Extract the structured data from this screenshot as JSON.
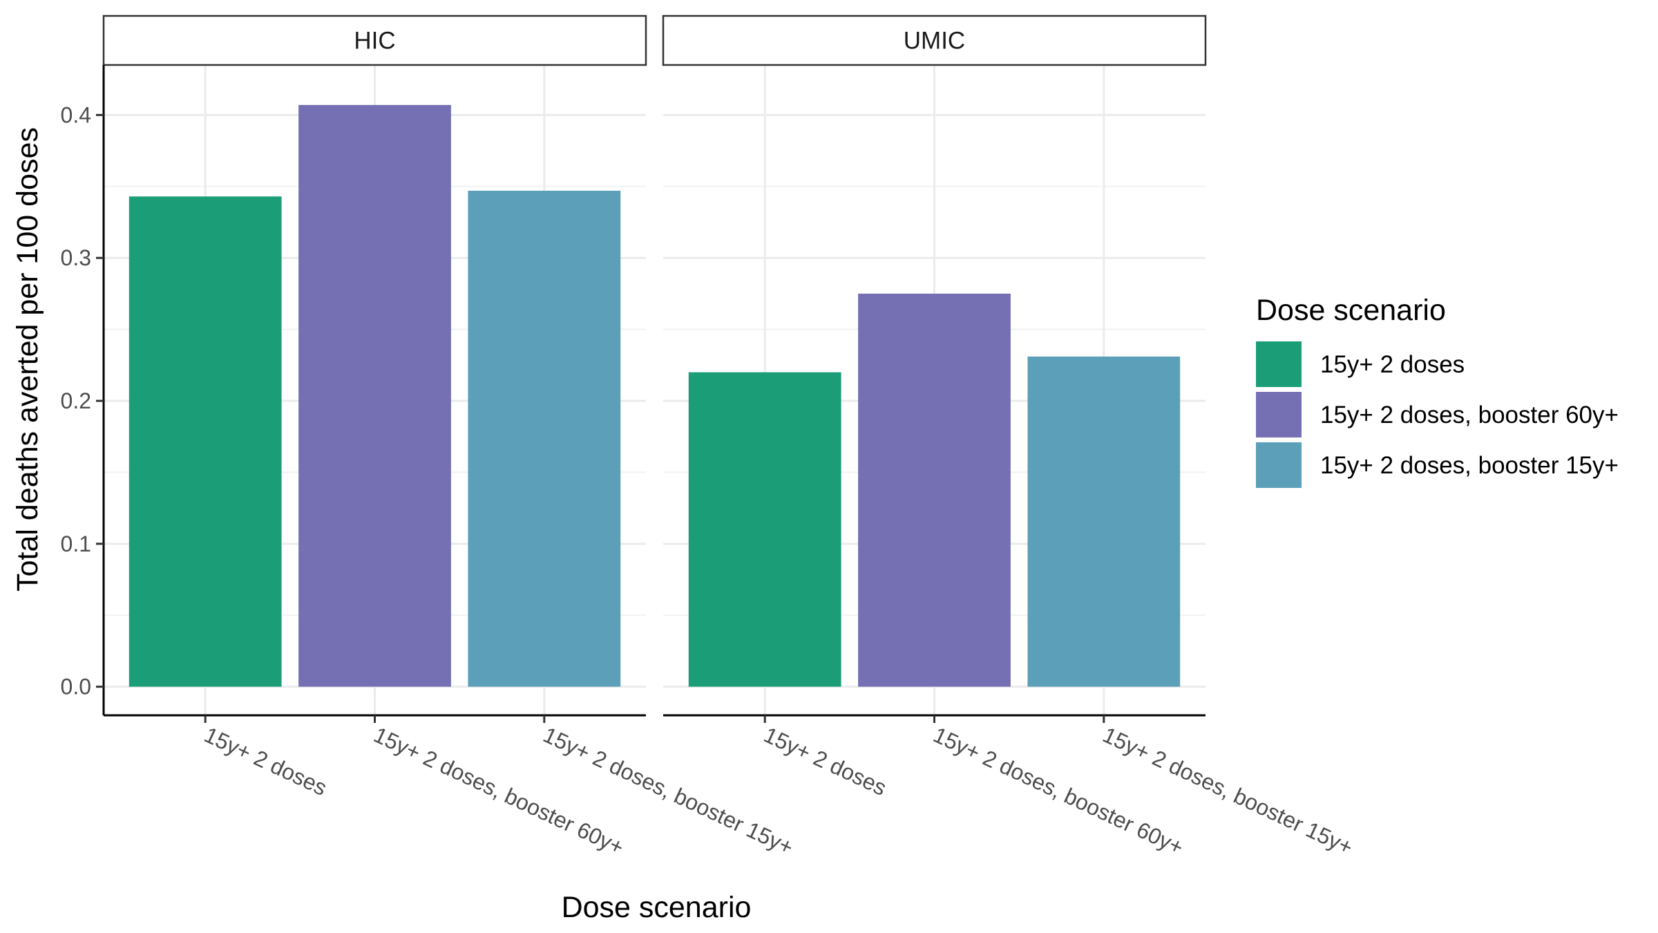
{
  "chart_data": {
    "type": "bar",
    "title": "",
    "xlabel": "Dose scenario",
    "ylabel": "Total deaths averted per 100 doses",
    "ylim": [
      -0.02,
      0.435
    ],
    "yticks": [
      "0.0",
      "0.1",
      "0.2",
      "0.3",
      "0.4"
    ],
    "ytick_values": [
      0.0,
      0.1,
      0.2,
      0.3,
      0.4
    ],
    "categories": [
      "15y+ 2 doses",
      "15y+ 2 doses, booster 60y+",
      "15y+ 2 doses, booster 15y+"
    ],
    "colors": [
      "#1b9e77",
      "#7570b3",
      "#5ba0b8"
    ],
    "grid": true,
    "legend": {
      "title": "Dose scenario",
      "position": "right",
      "entries": [
        "15y+ 2 doses",
        "15y+ 2 doses, booster 60y+",
        "15y+ 2 doses, booster 15y+"
      ]
    },
    "facets": [
      {
        "label": "HIC",
        "values": [
          0.343,
          0.407,
          0.347
        ]
      },
      {
        "label": "UMIC",
        "values": [
          0.22,
          0.275,
          0.231
        ]
      }
    ]
  }
}
